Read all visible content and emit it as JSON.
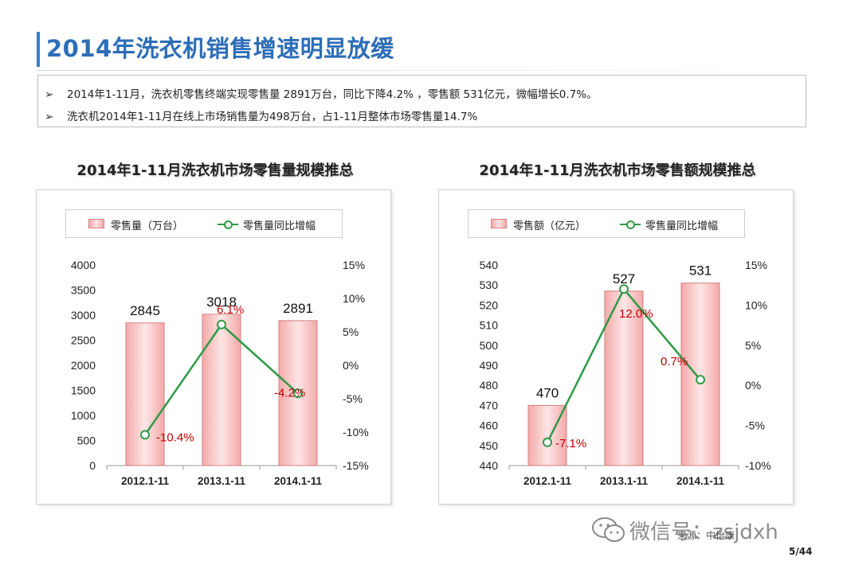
{
  "page": {
    "title": "2014年洗衣机销售增速明显放缓",
    "bullets": [
      "2014年1-11月，洗衣机零售终端实现零售量 2891万台，同比下降4.2% ，零售额 531亿元，微幅增长0.7%。",
      "洗衣机2014年1-11月在线上市场销售量为498万台，占1-11月整体市场零售量14.7%"
    ],
    "bullet_marker": "➢",
    "page_number": "5/44",
    "watermark": "微信号：zsjdxh",
    "source": "来源：中怡康"
  },
  "colors": {
    "title": "#2d6db8",
    "bar_fill": "#f5a9a9",
    "bar_border": "#d47f7f",
    "line": "#2f9a45",
    "growth_label": "#c00000"
  },
  "chart_data": [
    {
      "type": "bar",
      "heading": "2014年1-11月洗衣机市场零售量规模推总",
      "categories": [
        "2012.1-11",
        "2013.1-11",
        "2014.1-11"
      ],
      "series": [
        {
          "name": "零售量（万台）",
          "type": "bar",
          "axis": "left",
          "values": [
            2845,
            3018,
            2891
          ],
          "labels": [
            "2845",
            "3018",
            "2891"
          ]
        },
        {
          "name": "零售量同比增幅",
          "type": "line",
          "axis": "right",
          "values": [
            -10.4,
            6.1,
            -4.2
          ],
          "labels": [
            "-10.4%",
            "6.1%",
            "-4.2%"
          ]
        }
      ],
      "left_axis": {
        "min": 0,
        "max": 4000,
        "ticks": [
          "0",
          "500",
          "1000",
          "1500",
          "2000",
          "2500",
          "3000",
          "3500",
          "4000"
        ]
      },
      "right_axis": {
        "min": -15,
        "max": 15,
        "ticks": [
          "-15%",
          "-10%",
          "-5%",
          "0%",
          "5%",
          "10%",
          "15%"
        ]
      },
      "legend": "top"
    },
    {
      "type": "bar",
      "heading": "2014年1-11月洗衣机市场零售额规模推总",
      "categories": [
        "2012.1-11",
        "2013.1-11",
        "2014.1-11"
      ],
      "series": [
        {
          "name": "零售额（亿元）",
          "type": "bar",
          "axis": "left",
          "values": [
            470,
            527,
            531
          ],
          "labels": [
            "470",
            "527",
            "531"
          ]
        },
        {
          "name": "零售量同比增幅",
          "type": "line",
          "axis": "right",
          "values": [
            -7.1,
            12.0,
            0.7
          ],
          "labels": [
            "-7.1%",
            "12.0%",
            "0.7%"
          ]
        }
      ],
      "left_axis": {
        "min": 440,
        "max": 540,
        "ticks": [
          "440",
          "450",
          "460",
          "470",
          "480",
          "490",
          "500",
          "510",
          "520",
          "530",
          "540"
        ]
      },
      "right_axis": {
        "min": -10,
        "max": 15,
        "ticks": [
          "-10%",
          "-5%",
          "0%",
          "5%",
          "10%",
          "15%"
        ]
      },
      "legend": "top"
    }
  ]
}
